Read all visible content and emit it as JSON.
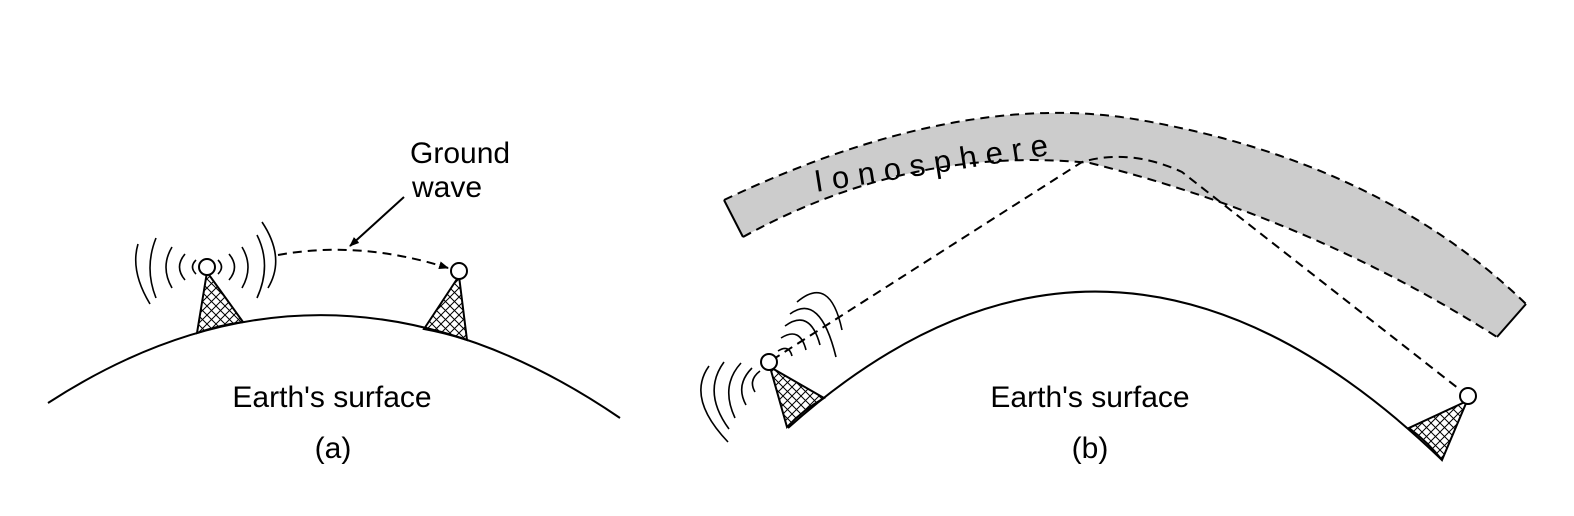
{
  "panel_a": {
    "ground_wave_label_line1": "Ground",
    "ground_wave_label_line2": "wave",
    "surface_label": "Earth's surface",
    "panel_label": "(a)"
  },
  "panel_b": {
    "ionosphere_label": "Ionosphere",
    "surface_label": "Earth's surface",
    "panel_label": "(b)"
  },
  "colors": {
    "ionosphere_fill": "#cccccc",
    "stroke": "#000000",
    "background": "#ffffff"
  }
}
